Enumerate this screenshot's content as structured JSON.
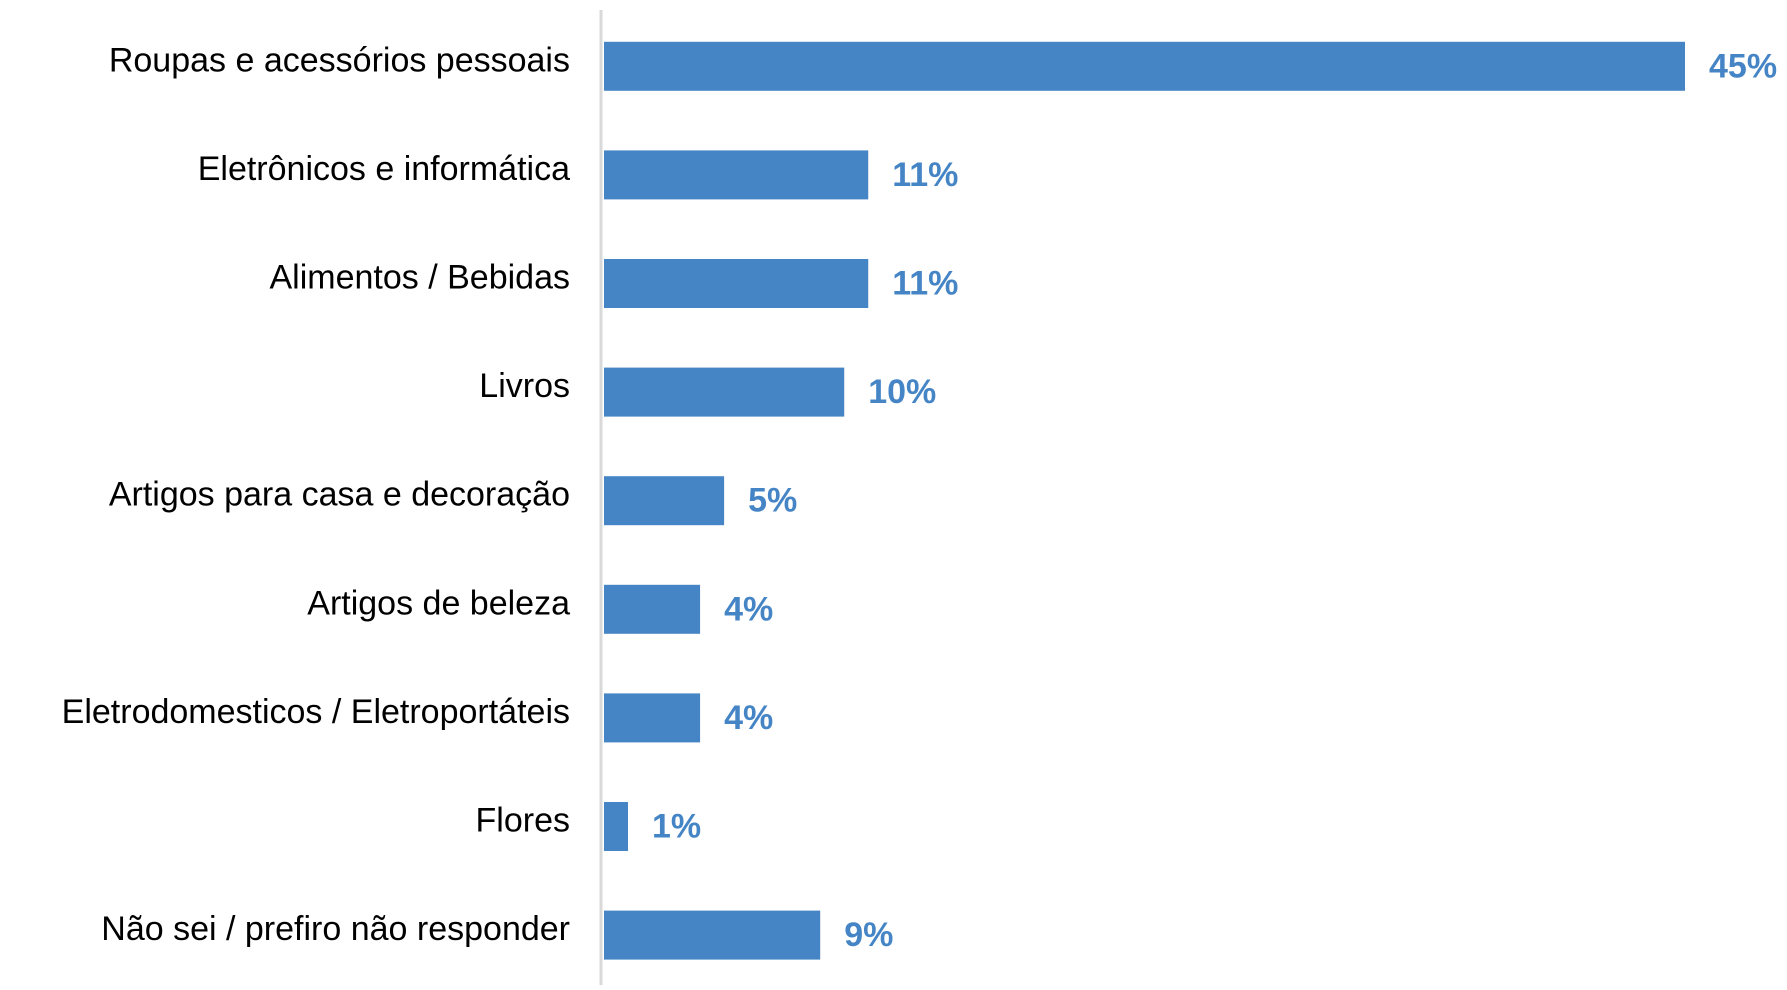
{
  "chart_data": {
    "type": "bar",
    "orientation": "horizontal",
    "categories": [
      "Roupas e acessórios pessoais",
      "Eletrônicos e informática",
      "Alimentos / Bebidas",
      "Livros",
      "Artigos para casa e decoração",
      "Artigos de beleza",
      "Eletrodomesticos / Eletroportáteis",
      "Flores",
      "Não sei / prefiro não responder"
    ],
    "values": [
      45,
      11,
      11,
      10,
      5,
      4,
      4,
      1,
      9
    ],
    "value_labels": [
      "45%",
      "11%",
      "11%",
      "10%",
      "5%",
      "4%",
      "4%",
      "1%",
      "9%"
    ],
    "color": "#4585c5"
  }
}
